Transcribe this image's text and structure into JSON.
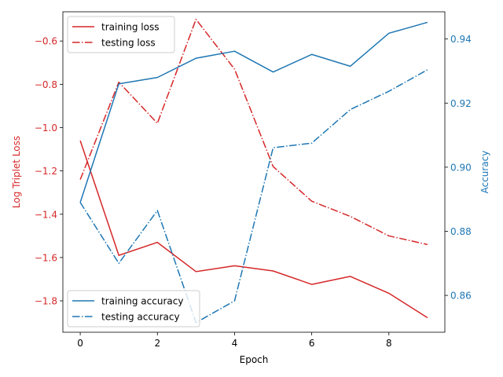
{
  "chart_data": {
    "type": "line",
    "x": [
      0,
      1,
      2,
      3,
      4,
      5,
      6,
      7,
      8,
      9
    ],
    "xlabel": "Epoch",
    "xlim": [
      -0.45,
      9.45
    ],
    "xticks": [
      0,
      2,
      4,
      6,
      8
    ],
    "left_axis": {
      "label": "Log Triplet Loss",
      "color": "#d62728",
      "ylim": [
        -1.945,
        -0.465
      ],
      "ticks": [
        -1.8,
        -1.6,
        -1.4,
        -1.2,
        -1.0,
        -0.8,
        -0.6
      ],
      "tick_labels": [
        "−1.8",
        "−1.6",
        "−1.4",
        "−1.2",
        "−1.0",
        "−0.8",
        "−0.6"
      ]
    },
    "right_axis": {
      "label": "Accuracy",
      "color": "#1f77b4",
      "ylim": [
        0.8485,
        0.9485
      ],
      "ticks": [
        0.86,
        0.88,
        0.9,
        0.92,
        0.94
      ],
      "tick_labels": [
        "0.86",
        "0.88",
        "0.90",
        "0.92",
        "0.94"
      ]
    },
    "series": [
      {
        "name": "training loss",
        "axis": "left",
        "color": "#d62728",
        "dash": "solid",
        "values": [
          -1.06,
          -1.59,
          -1.53,
          -1.665,
          -1.638,
          -1.662,
          -1.724,
          -1.687,
          -1.765,
          -1.878
        ]
      },
      {
        "name": "testing loss",
        "axis": "left",
        "color": "#d62728",
        "dash": "dashdot",
        "values": [
          -1.24,
          -0.79,
          -0.98,
          -0.5,
          -0.73,
          -1.18,
          -1.34,
          -1.41,
          -1.5,
          -1.54
        ]
      },
      {
        "name": "training accuracy",
        "axis": "right",
        "color": "#1f77b4",
        "dash": "solid",
        "values": [
          0.889,
          0.926,
          0.928,
          0.934,
          0.9362,
          0.9297,
          0.9352,
          0.9315,
          0.9418,
          0.9452
        ]
      },
      {
        "name": "testing accuracy",
        "axis": "right",
        "color": "#1f77b4",
        "dash": "dashdot",
        "values": [
          0.889,
          0.87,
          0.8865,
          0.8515,
          0.8583,
          0.9061,
          0.9075,
          0.918,
          0.9237,
          0.9304
        ]
      }
    ],
    "legends": [
      {
        "placement": "top-left",
        "entries": [
          "training loss",
          "testing loss"
        ]
      },
      {
        "placement": "bottom-left",
        "entries": [
          "training accuracy",
          "testing accuracy"
        ]
      }
    ],
    "grid": false
  }
}
